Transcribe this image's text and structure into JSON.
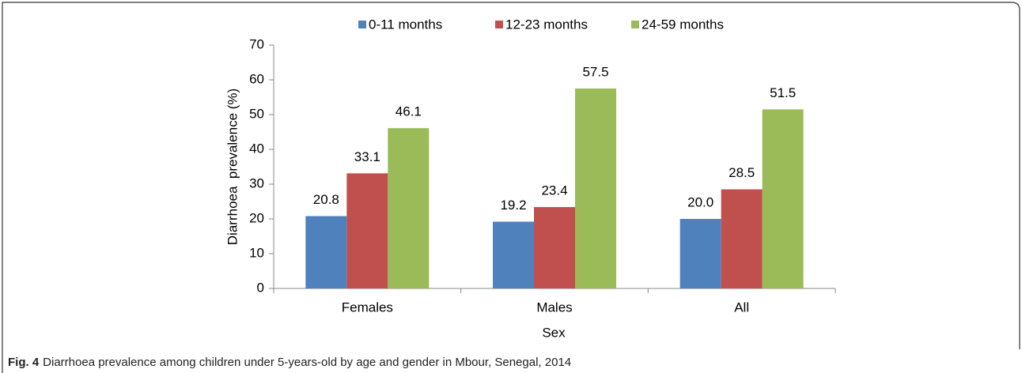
{
  "chart_data": {
    "type": "bar",
    "categories": [
      "Females",
      "Males",
      "All"
    ],
    "series": [
      {
        "name": "0-11 months",
        "color": "#4f81bd",
        "values": [
          20.8,
          19.2,
          20.0
        ],
        "value_labels": [
          "20.8",
          "19.2",
          "20.0"
        ]
      },
      {
        "name": "12-23 months",
        "color": "#c0504d",
        "values": [
          33.1,
          23.4,
          28.5
        ],
        "value_labels": [
          "33.1",
          "23.4",
          "28.5"
        ]
      },
      {
        "name": "24-59 months",
        "color": "#9bbb59",
        "values": [
          46.1,
          57.5,
          51.5
        ],
        "value_labels": [
          "46.1",
          "57.5",
          "51.5"
        ]
      }
    ],
    "ylim": [
      0,
      70
    ],
    "yticks": [
      0,
      10,
      20,
      30,
      40,
      50,
      60,
      70
    ],
    "y_label": "Diarrhoea  prevalence (%)",
    "x_label": "Sex",
    "legend": "top",
    "caption_label": "Fig. 4",
    "caption": "Diarrhoea prevalence among children under 5-years-old by age and gender in Mbour, Senegal, 2014"
  }
}
